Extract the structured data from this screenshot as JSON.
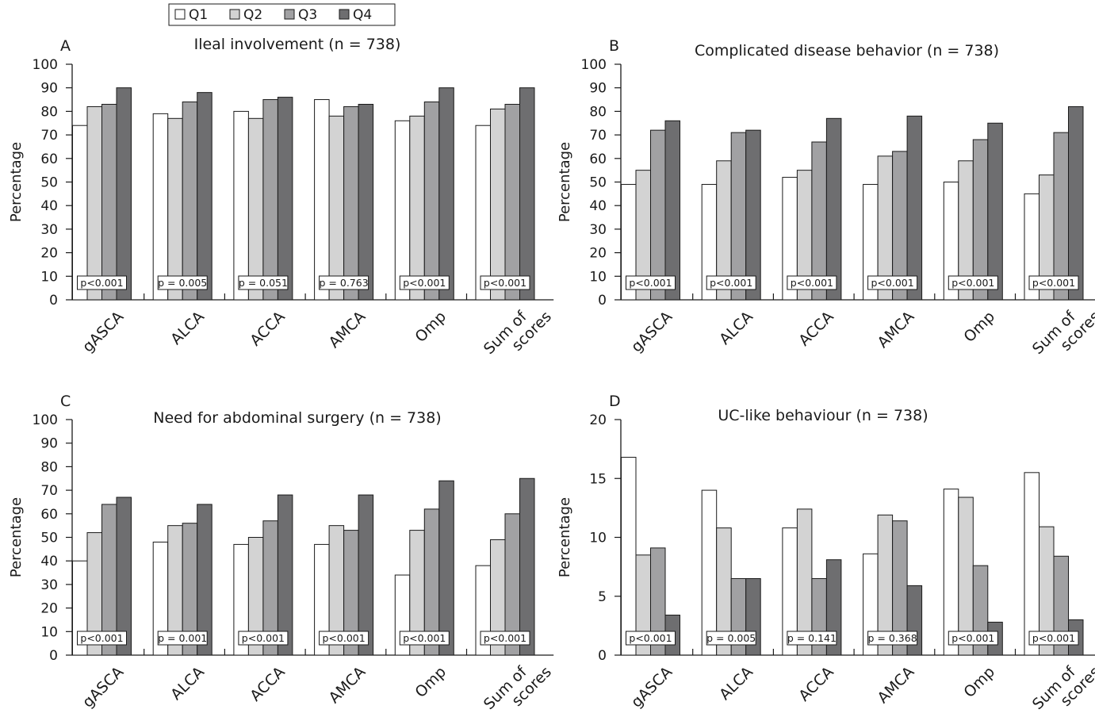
{
  "legend": {
    "items": [
      {
        "label": "Q1",
        "color": "#ffffff"
      },
      {
        "label": "Q2",
        "color": "#d3d3d3"
      },
      {
        "label": "Q3",
        "color": "#a1a1a3"
      },
      {
        "label": "Q4",
        "color": "#6e6e70"
      }
    ]
  },
  "chart_data": [
    {
      "type": "bar",
      "panel": "A",
      "title": "Ileal involvement (n = 738)",
      "ylabel": "Percentage",
      "ylim": [
        0,
        100
      ],
      "yticks": [
        0,
        10,
        20,
        30,
        40,
        50,
        60,
        70,
        80,
        90,
        100
      ],
      "categories": [
        "gASCA",
        "ALCA",
        "ACCA",
        "AMCA",
        "Omp",
        "Sum of scores"
      ],
      "series": [
        {
          "name": "Q1",
          "values": [
            74,
            79,
            80,
            85,
            76,
            74
          ]
        },
        {
          "name": "Q2",
          "values": [
            82,
            77,
            77,
            78,
            78,
            81
          ]
        },
        {
          "name": "Q3",
          "values": [
            83,
            84,
            85,
            82,
            84,
            83
          ]
        },
        {
          "name": "Q4",
          "values": [
            90,
            88,
            86,
            83,
            90,
            90
          ]
        }
      ],
      "pvalues": [
        "p<0.001",
        "p = 0.005",
        "p = 0.051",
        "p = 0.763",
        "p<0.001",
        "p<0.001"
      ]
    },
    {
      "type": "bar",
      "panel": "B",
      "title": "Complicated disease behavior (n = 738)",
      "ylabel": "Percentage",
      "ylim": [
        0,
        100
      ],
      "yticks": [
        0,
        10,
        20,
        30,
        40,
        50,
        60,
        70,
        80,
        90,
        100
      ],
      "categories": [
        "gASCA",
        "ALCA",
        "ACCA",
        "AMCA",
        "Omp",
        "Sum of scores"
      ],
      "series": [
        {
          "name": "Q1",
          "values": [
            49,
            49,
            52,
            49,
            50,
            45
          ]
        },
        {
          "name": "Q2",
          "values": [
            55,
            59,
            55,
            61,
            59,
            53
          ]
        },
        {
          "name": "Q3",
          "values": [
            72,
            71,
            67,
            63,
            68,
            71
          ]
        },
        {
          "name": "Q4",
          "values": [
            76,
            72,
            77,
            78,
            75,
            82
          ]
        }
      ],
      "pvalues": [
        "p<0.001",
        "p<0.001",
        "p<0.001",
        "p<0.001",
        "p<0.001",
        "p<0.001"
      ]
    },
    {
      "type": "bar",
      "panel": "C",
      "title": "Need for abdominal surgery (n = 738)",
      "ylabel": "Percentage",
      "ylim": [
        0,
        100
      ],
      "yticks": [
        0,
        10,
        20,
        30,
        40,
        50,
        60,
        70,
        80,
        90,
        100
      ],
      "categories": [
        "gASCA",
        "ALCA",
        "ACCA",
        "AMCA",
        "Omp",
        "Sum of scores"
      ],
      "series": [
        {
          "name": "Q1",
          "values": [
            40,
            48,
            47,
            47,
            34,
            38
          ]
        },
        {
          "name": "Q2",
          "values": [
            52,
            55,
            50,
            55,
            53,
            49
          ]
        },
        {
          "name": "Q3",
          "values": [
            64,
            56,
            57,
            53,
            62,
            60
          ]
        },
        {
          "name": "Q4",
          "values": [
            67,
            64,
            68,
            68,
            74,
            75
          ]
        }
      ],
      "pvalues": [
        "p<0.001",
        "p = 0.001",
        "p<0.001",
        "p<0.001",
        "p<0.001",
        "p<0.001"
      ]
    },
    {
      "type": "bar",
      "panel": "D",
      "title": "UC-like behaviour (n = 738)",
      "ylabel": "Percentage",
      "ylim": [
        0,
        20
      ],
      "yticks": [
        0,
        5,
        10,
        15,
        20
      ],
      "categories": [
        "gASCA",
        "ALCA",
        "ACCA",
        "AMCA",
        "Omp",
        "Sum of scores"
      ],
      "series": [
        {
          "name": "Q1",
          "values": [
            16.8,
            14.0,
            10.8,
            8.6,
            14.1,
            15.5
          ]
        },
        {
          "name": "Q2",
          "values": [
            8.5,
            10.8,
            12.4,
            11.9,
            13.4,
            10.9
          ]
        },
        {
          "name": "Q3",
          "values": [
            9.1,
            6.5,
            6.5,
            11.4,
            7.6,
            8.4
          ]
        },
        {
          "name": "Q4",
          "values": [
            3.4,
            6.5,
            8.1,
            5.9,
            2.8,
            3.0
          ]
        }
      ],
      "pvalues": [
        "p<0.001",
        "p = 0.005",
        "p = 0.141",
        "p = 0.368",
        "p<0.001",
        "p<0.001"
      ]
    }
  ]
}
